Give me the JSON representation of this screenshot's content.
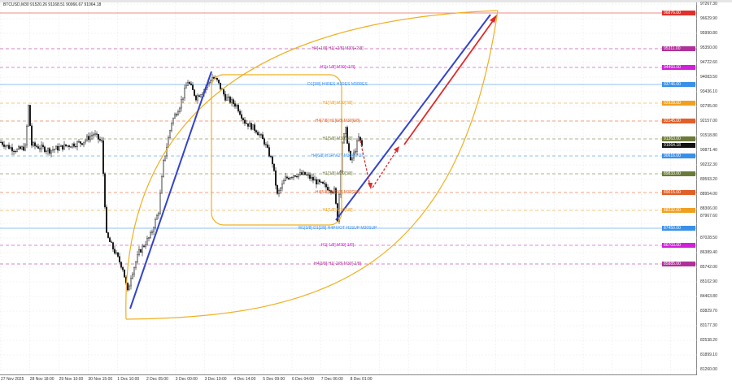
{
  "header": {
    "title": "BTCUSD,M30  91520.26 91168.51 90066.67 91064.18"
  },
  "chart_data": {
    "type": "candlestick",
    "symbol": "BTCUSD",
    "timeframe": "M30",
    "ohlc_header": {
      "open": 91520.26,
      "high": 91168.51,
      "low": 90066.67,
      "close": 91064.18
    },
    "ylim": [
      81260.0,
      97267.3
    ],
    "y_ticks": [
      "97267.30",
      "96629.90",
      "95990.80",
      "95350.00",
      "94722.60",
      "94083.50",
      "93436.10",
      "92795.00",
      "92157.00",
      "91518.80",
      "90871.40",
      "90232.30",
      "89593.20",
      "88954.00",
      "88306.00",
      "87967.60",
      "87028.50",
      "86389.40",
      "85742.00",
      "85102.90",
      "84463.80",
      "83829.70",
      "83177.30",
      "82538.20",
      "81899.10",
      "81260.00"
    ],
    "x_ticks": [
      "27 Nov 2025",
      "28 Nov 18:00",
      "29 Nov 10:00",
      "30 Nov 15:00",
      "1 Dec 10:00",
      "2 Dec 05:00",
      "3 Dec 00:00",
      "3 Dec 19:00",
      "4 Dec 14:00",
      "5 Dec 09:00",
      "6 Dec 04:00",
      "7 Dec 06:00",
      "8 Dec 01:00"
    ],
    "grid": true,
    "current_price": 91064.18,
    "price_path": [
      [
        0,
        91220
      ],
      [
        5,
        91000
      ],
      [
        10,
        90860
      ],
      [
        15,
        91000
      ],
      [
        17,
        92800
      ],
      [
        19,
        91100
      ],
      [
        30,
        90860
      ],
      [
        40,
        91050
      ],
      [
        50,
        91220
      ],
      [
        57,
        91580
      ],
      [
        62,
        91220
      ],
      [
        65,
        87130
      ],
      [
        70,
        86420
      ],
      [
        75,
        85700
      ],
      [
        78,
        84640
      ],
      [
        80,
        85350
      ],
      [
        85,
        86400
      ],
      [
        92,
        87130
      ],
      [
        97,
        88200
      ],
      [
        100,
        90330
      ],
      [
        105,
        92100
      ],
      [
        110,
        92820
      ],
      [
        115,
        93890
      ],
      [
        120,
        93180
      ],
      [
        125,
        93530
      ],
      [
        130,
        94070
      ],
      [
        133,
        93890
      ],
      [
        138,
        93180
      ],
      [
        145,
        92820
      ],
      [
        150,
        92110
      ],
      [
        157,
        91750
      ],
      [
        162,
        91220
      ],
      [
        167,
        90330
      ],
      [
        170,
        88900
      ],
      [
        175,
        89620
      ],
      [
        180,
        89800
      ],
      [
        187,
        89800
      ],
      [
        195,
        89440
      ],
      [
        200,
        89260
      ],
      [
        205,
        89090
      ],
      [
        207,
        87840
      ],
      [
        210,
        91220
      ],
      [
        212,
        91750
      ],
      [
        215,
        90330
      ],
      [
        217,
        90690
      ],
      [
        220,
        91400
      ],
      [
        222,
        91064.18
      ]
    ],
    "levels": [
      {
        "label": "",
        "price": 96876.0,
        "color": "#e0302a",
        "style": "solid"
      },
      {
        "label": "H4[+1/8] H1[+2/8] M30[+2/8]",
        "price": 95311.0,
        "color": "#b0309a",
        "style": "dash"
      },
      {
        "label": "H1[+1/8] M30[+1/8]",
        "price": 94493.0,
        "color": "#d020d8",
        "style": "dash"
      },
      {
        "label": "D1[3/8] H4RES H1RES M30RES",
        "price": 93746.0,
        "color": "#3a90e8",
        "style": "solid"
      },
      {
        "label": "H1[7/8] M30[7/8]",
        "price": 92928.0,
        "color": "#f0a020",
        "style": "dash"
      },
      {
        "label": "H4[7/8] H1[6/8] M30[6/8]",
        "price": 92145.0,
        "color": "#e06028",
        "style": "dash"
      },
      {
        "label": "H1[5/8] M30[5/8]",
        "price": 91363.0,
        "color": "#6b7a3a",
        "style": "dash"
      },
      {
        "label": "H4[6/8] H1PIVOT M30PIVOT",
        "price": 90616.0,
        "color": "#3a90e8",
        "style": "dash"
      },
      {
        "label": "H1[3/8] M30[3/8]",
        "price": 89833.0,
        "color": "#6b7a3a",
        "style": "dash"
      },
      {
        "label": "H4[5/8] H1[2/8] M30[2/8]",
        "price": 89015.0,
        "color": "#e06028",
        "style": "dash"
      },
      {
        "label": "H1[1/8] M30[1/8]",
        "price": 88232.0,
        "color": "#f0a020",
        "style": "dash"
      },
      {
        "label": "W1[3/8] D1[2/8] H4PIVOT H1SUP M30SUP",
        "price": 87450.0,
        "color": "#3a90e8",
        "style": "solid"
      },
      {
        "label": "H1[-1/8] M30[-1/8]",
        "price": 86703.0,
        "color": "#d020d8",
        "style": "dash"
      },
      {
        "label": "H4[3/8] H1[-2/8] M30[-2/8]",
        "price": 85885.0,
        "color": "#b0309a",
        "style": "dash"
      }
    ],
    "colors": {
      "candle": "#111111",
      "trend_up": "#3344cc",
      "projection": "#e02828",
      "envelope": "#f0b020"
    }
  }
}
